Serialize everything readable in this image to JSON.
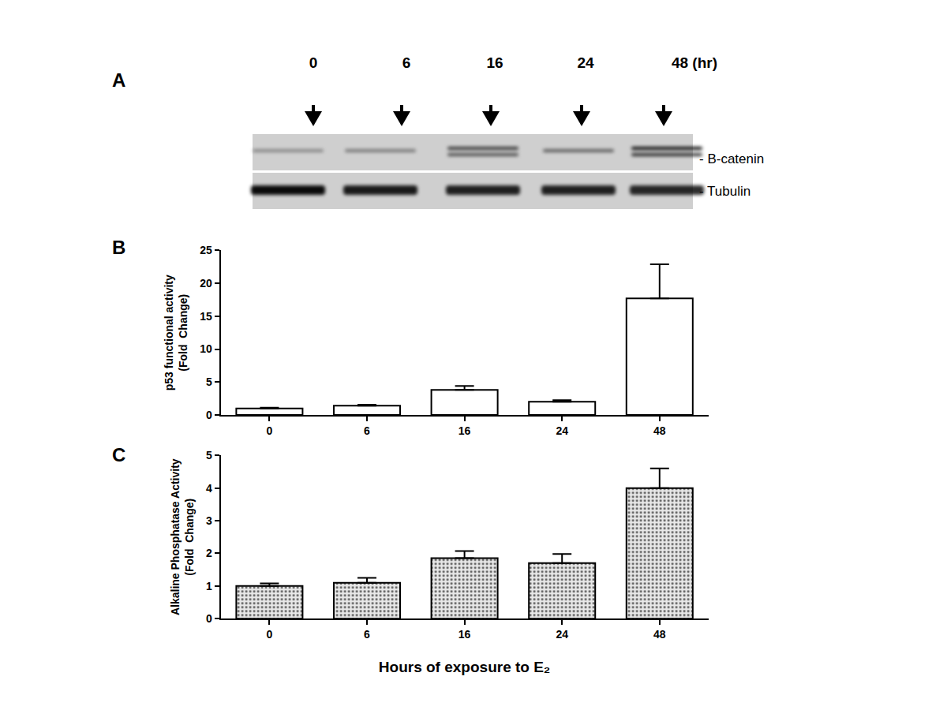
{
  "panel_labels": [
    "A",
    "B",
    "C"
  ],
  "blot": {
    "lanes": [
      "0",
      "6",
      "16",
      "24",
      "48 (hr)"
    ],
    "bands": [
      "- B-catenin",
      "- Tubulin"
    ]
  },
  "chart_data": [
    {
      "type": "bar",
      "categories": [
        "0",
        "6",
        "16",
        "24",
        "48"
      ],
      "values": [
        1.0,
        1.4,
        3.8,
        2.0,
        17.7
      ],
      "errors": [
        0.1,
        0.15,
        0.6,
        0.25,
        5.2
      ],
      "color": "#ffffff",
      "ylabel": "p53 functional activity\n(Fold  Change)",
      "ylim": [
        0,
        25
      ],
      "yticks": [
        0,
        5,
        10,
        15,
        20,
        25
      ],
      "grid": false
    },
    {
      "type": "bar",
      "categories": [
        "0",
        "6",
        "16",
        "24",
        "48"
      ],
      "values": [
        1.0,
        1.1,
        1.85,
        1.7,
        4.0
      ],
      "errors": [
        0.08,
        0.15,
        0.22,
        0.28,
        0.6
      ],
      "color": "#e8e8e8",
      "ylabel": "Alkaline Phosphatase Activity\n(Fold  Change)",
      "xlabel": "Hours of exposure to E₂",
      "ylim": [
        0,
        5
      ],
      "yticks": [
        0,
        1,
        2,
        3,
        4,
        5
      ],
      "grid": false
    }
  ]
}
